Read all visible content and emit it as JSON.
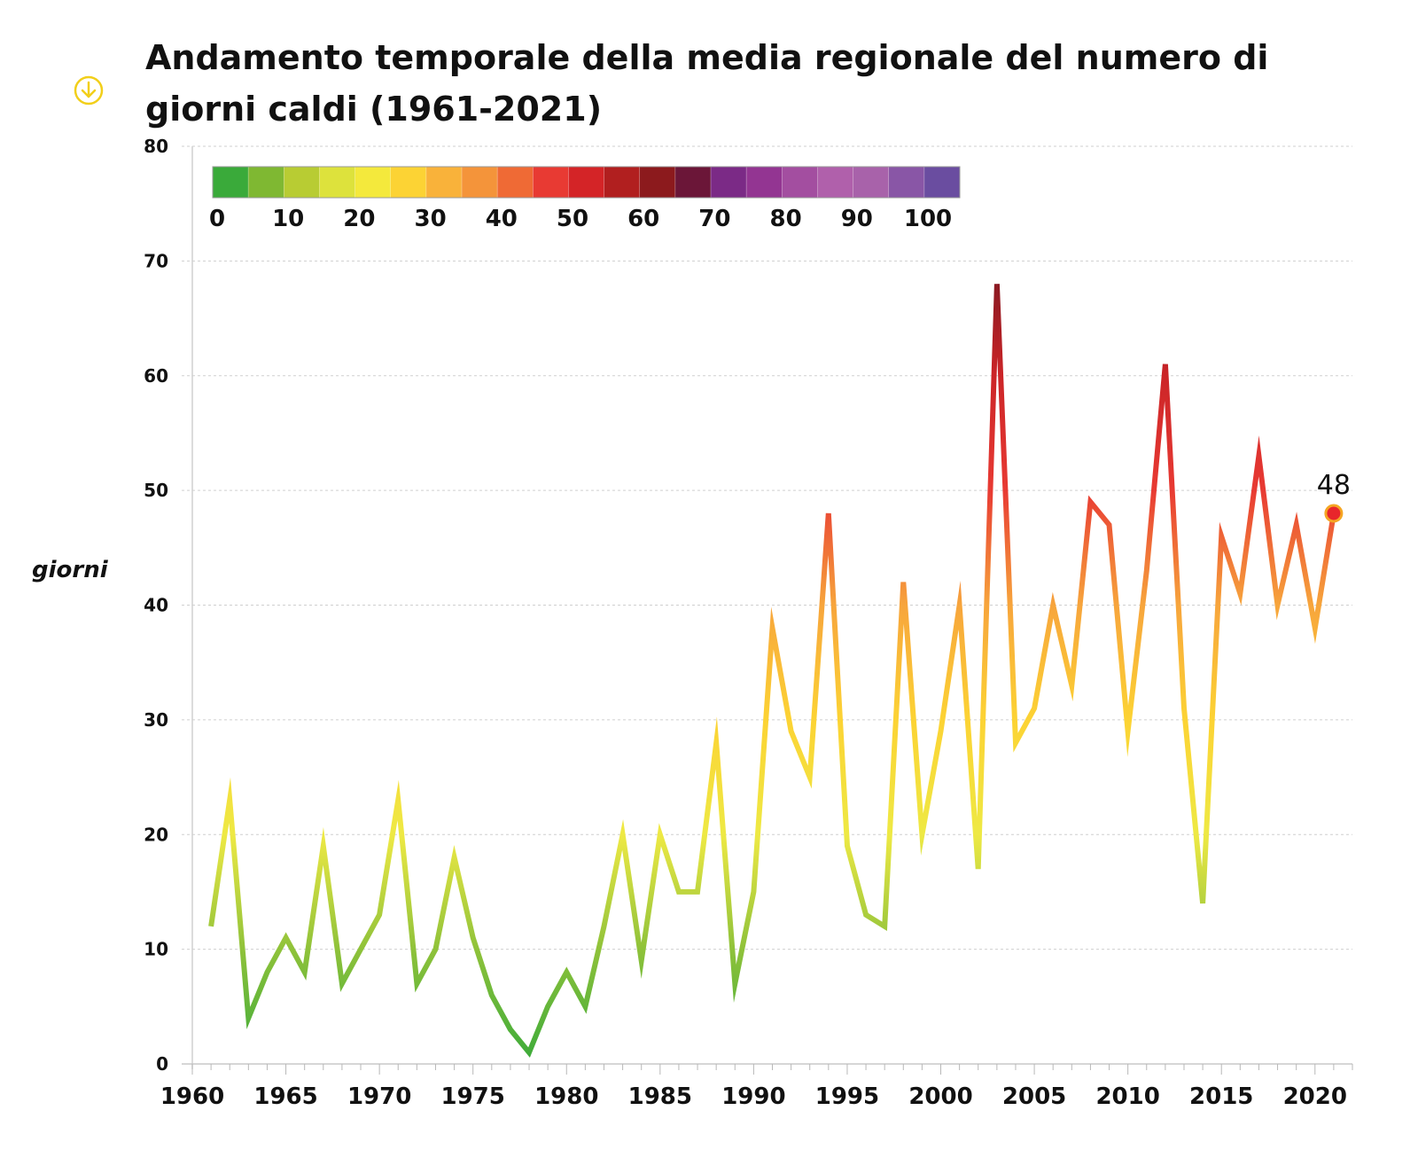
{
  "header": {
    "title": "Andamento temporale della media regionale del numero di giorni caldi (1961-2021)",
    "download_icon": "download-circle-icon",
    "icon_color": "#f2cf1a"
  },
  "chart_data": {
    "type": "line",
    "title": "Andamento temporale della media regionale del numero di giorni caldi (1961-2021)",
    "xlabel": "",
    "ylabel": "giorni",
    "xlim": [
      1960,
      2022
    ],
    "ylim": [
      0,
      80
    ],
    "x_ticks": [
      "1960",
      "1965",
      "1970",
      "1975",
      "1980",
      "1985",
      "1990",
      "1995",
      "2000",
      "2005",
      "2010",
      "2015",
      "2020"
    ],
    "y_ticks": [
      "0",
      "10",
      "20",
      "30",
      "40",
      "50",
      "60",
      "70",
      "80"
    ],
    "grid": true,
    "x": [
      1961,
      1962,
      1963,
      1964,
      1965,
      1966,
      1967,
      1968,
      1969,
      1970,
      1971,
      1972,
      1973,
      1974,
      1975,
      1976,
      1977,
      1978,
      1979,
      1980,
      1981,
      1982,
      1983,
      1984,
      1985,
      1986,
      1987,
      1988,
      1989,
      1990,
      1991,
      1992,
      1993,
      1994,
      1995,
      1996,
      1997,
      1998,
      1999,
      2000,
      2001,
      2002,
      2003,
      2004,
      2005,
      2006,
      2007,
      2008,
      2009,
      2010,
      2011,
      2012,
      2013,
      2014,
      2015,
      2016,
      2017,
      2018,
      2019,
      2020,
      2021
    ],
    "values": [
      12,
      23,
      4,
      8,
      11,
      8,
      19,
      7,
      10,
      13,
      23,
      7,
      10,
      18,
      11,
      6,
      3,
      1,
      5,
      8,
      5,
      12,
      20,
      9,
      20,
      15,
      15,
      28,
      7,
      15,
      38,
      29,
      25,
      48,
      19,
      13,
      12,
      42,
      20,
      29,
      40,
      17,
      68,
      28,
      31,
      40,
      33,
      49,
      47,
      29,
      43,
      61,
      31,
      14,
      46,
      41,
      53,
      40,
      47,
      38,
      48
    ],
    "end_label": "48",
    "colorbar": {
      "ticks": [
        "0",
        "10",
        "20",
        "30",
        "40",
        "50",
        "60",
        "70",
        "80",
        "90",
        "100"
      ],
      "colors": [
        "#3aaa3a",
        "#7fb832",
        "#b8cc33",
        "#dde23c",
        "#f4e93c",
        "#fcd334",
        "#f9b23a",
        "#f4943a",
        "#ef6a35",
        "#e83a33",
        "#d42427",
        "#b11f1f",
        "#8c1a1d",
        "#6b1638",
        "#7b2a86",
        "#933592",
        "#a34ea0",
        "#b060ab",
        "#a862aa",
        "#8956a6",
        "#6a4da0"
      ]
    },
    "line_colors": [
      {
        "value": 0,
        "color": "#3aaa3a"
      },
      {
        "value": 10,
        "color": "#8fc23a"
      },
      {
        "value": 20,
        "color": "#eee944"
      },
      {
        "value": 30,
        "color": "#fcd334"
      },
      {
        "value": 40,
        "color": "#f7a53c"
      },
      {
        "value": 50,
        "color": "#e83a33"
      },
      {
        "value": 60,
        "color": "#cc2528"
      },
      {
        "value": 70,
        "color": "#7a1620"
      }
    ],
    "marker_color": "#e8262b",
    "marker_edge_color": "#f5a623"
  }
}
